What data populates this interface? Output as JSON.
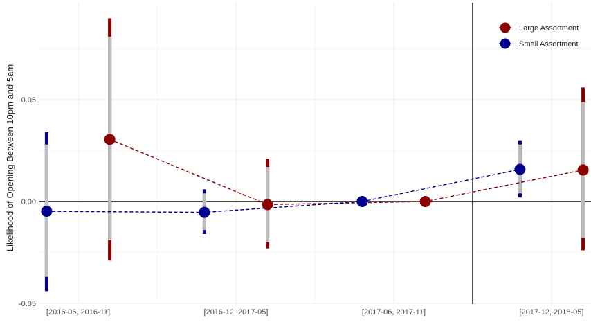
{
  "chart_data": {
    "type": "scatter",
    "title": "",
    "xlabel": "",
    "ylabel": "Likelihood of Opening Between 10pm and 5am",
    "ylim": [
      -0.05,
      0.092
    ],
    "categories": [
      "[2016-06, 2016-11]",
      "[2016-12, 2017-05]",
      "[2017-06, 2017-11]",
      "[2017-12, 2018-05]"
    ],
    "y_ticks": [
      {
        "value": -0.05,
        "label": "-0.05"
      },
      {
        "value": 0.0,
        "label": "0.00"
      },
      {
        "value": 0.05,
        "label": "0.05"
      }
    ],
    "reference_lines": {
      "horizontal": 0.0,
      "vertical_between_categories": [
        2,
        3
      ]
    },
    "grid": true,
    "legend_position": "top-right",
    "series": [
      {
        "name": "Large Assortment",
        "color": "#8b0000",
        "offset": 0.2,
        "line_style": "dashed",
        "points": [
          {
            "category": "[2016-06, 2016-11]",
            "y": 0.0305,
            "ci95": [
              -0.029,
              0.09
            ],
            "ci90": [
              -0.019,
              0.081
            ]
          },
          {
            "category": "[2016-12, 2017-05]",
            "y": -0.0015,
            "ci95": [
              -0.023,
              0.021
            ],
            "ci90": [
              -0.02,
              0.017
            ]
          },
          {
            "category": "[2017-06, 2017-11]",
            "y": 0.0,
            "ci95": null,
            "ci90": null
          },
          {
            "category": "[2017-12, 2018-05]",
            "y": 0.0155,
            "ci95": [
              -0.024,
              0.056
            ],
            "ci90": [
              -0.018,
              0.049
            ]
          }
        ]
      },
      {
        "name": "Small Assortment",
        "color": "#00008b",
        "offset": -0.2,
        "line_style": "dashed",
        "points": [
          {
            "category": "[2016-06, 2016-11]",
            "y": -0.0048,
            "ci95": [
              -0.044,
              0.034
            ],
            "ci90": [
              -0.037,
              0.028
            ]
          },
          {
            "category": "[2016-12, 2017-05]",
            "y": -0.0053,
            "ci95": [
              -0.016,
              0.006
            ],
            "ci90": [
              -0.014,
              0.004
            ]
          },
          {
            "category": "[2017-06, 2017-11]",
            "y": 0.0,
            "ci95": null,
            "ci90": null
          },
          {
            "category": "[2017-12, 2018-05]",
            "y": 0.0158,
            "ci95": [
              0.002,
              0.03
            ],
            "ci90": [
              0.004,
              0.028
            ]
          }
        ]
      }
    ]
  }
}
